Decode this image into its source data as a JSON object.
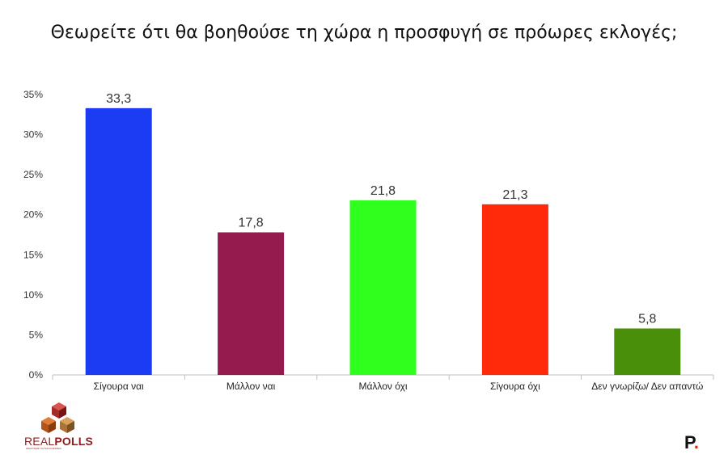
{
  "chart_data": {
    "type": "bar",
    "title": "Θεωρείτε ότι θα βοηθούσε τη χώρα η προσφυγή σε πρόωρες εκλογές;",
    "categories": [
      "Σίγουρα ναι",
      "Μάλλον ναι",
      "Μάλλον όχι",
      "Σίγουρα όχι",
      "Δεν γνωρίζω/ Δεν απαντώ"
    ],
    "values": [
      33.3,
      17.8,
      21.8,
      21.3,
      5.8
    ],
    "value_labels": [
      "33,3",
      "17,8",
      "21,8",
      "21,3",
      "5,8"
    ],
    "colors": [
      "#1c3cf4",
      "#951a4d",
      "#2eff1c",
      "#ff2a0a",
      "#4a8f0a"
    ],
    "ylim": [
      0,
      35
    ],
    "yticks": [
      "0%",
      "5%",
      "10%",
      "15%",
      "20%",
      "25%",
      "30%",
      "35%"
    ],
    "grid": false,
    "legend": "none"
  },
  "logo": {
    "name_light": "REAL",
    "name_bold": "POLLS",
    "tagline": "ΑΝΑΛΥΣΕΙΣ ΓΙΑ ΤΗΝ ΚΟΙΝΩΝΙΑ",
    "p_letter": "P",
    "p_dot": "."
  }
}
